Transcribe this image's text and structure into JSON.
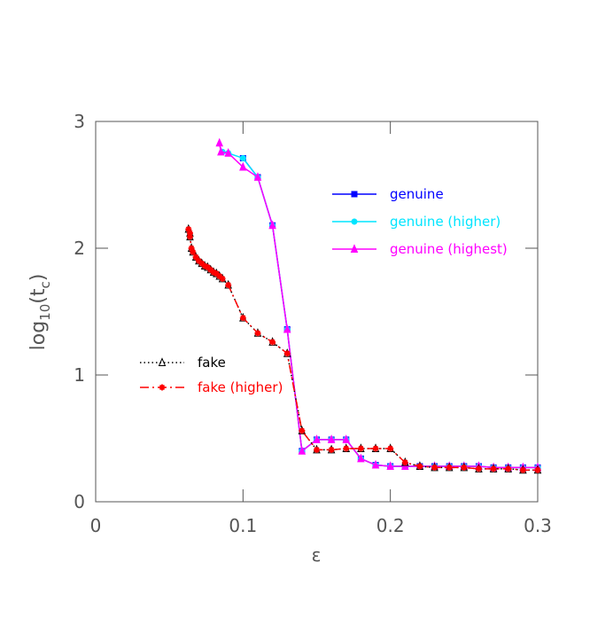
{
  "chart_data": {
    "type": "line",
    "x_label": "ε",
    "y_label_parts": [
      "log",
      "10",
      "(t",
      "c",
      ")"
    ],
    "xlim": [
      0,
      0.3
    ],
    "ylim": [
      0,
      3
    ],
    "xticks": [
      0,
      0.1,
      0.2,
      0.3
    ],
    "yticks": [
      0,
      1,
      2,
      3
    ],
    "series": [
      {
        "name": "genuine",
        "color": "#0000ff",
        "marker": "square",
        "dash": "solid",
        "x": [
          0.1,
          0.11,
          0.12,
          0.13,
          0.14,
          0.15,
          0.16,
          0.17,
          0.18,
          0.19,
          0.2,
          0.21,
          0.22,
          0.23,
          0.24,
          0.25,
          0.26,
          0.27,
          0.28,
          0.29,
          0.3
        ],
        "values": [
          2.71,
          2.56,
          2.18,
          1.36,
          0.4,
          0.49,
          0.49,
          0.49,
          0.34,
          0.29,
          0.28,
          0.28,
          0.28,
          0.28,
          0.28,
          0.28,
          0.28,
          0.27,
          0.27,
          0.27,
          0.27
        ]
      },
      {
        "name": "genuine (higher)",
        "color": "#00e5ff",
        "marker": "star",
        "dash": "solid",
        "x": [
          0.086,
          0.09,
          0.1,
          0.11,
          0.12,
          0.13,
          0.14,
          0.15,
          0.16,
          0.17,
          0.18,
          0.19,
          0.2,
          0.21,
          0.22,
          0.23,
          0.24,
          0.25,
          0.26,
          0.27,
          0.28,
          0.29,
          0.3
        ],
        "values": [
          2.76,
          2.75,
          2.71,
          2.56,
          2.18,
          1.36,
          0.4,
          0.49,
          0.49,
          0.49,
          0.34,
          0.29,
          0.28,
          0.28,
          0.28,
          0.28,
          0.28,
          0.28,
          0.28,
          0.27,
          0.27,
          0.27,
          0.27
        ]
      },
      {
        "name": "genuine (highest)",
        "color": "#ff00ff",
        "marker": "triangle",
        "dash": "solid",
        "x": [
          0.084,
          0.085,
          0.09,
          0.1,
          0.11,
          0.12,
          0.13,
          0.14,
          0.15,
          0.16,
          0.17,
          0.18,
          0.19,
          0.2,
          0.21,
          0.22,
          0.23,
          0.24,
          0.25,
          0.26,
          0.27,
          0.28,
          0.29,
          0.3
        ],
        "values": [
          2.83,
          2.76,
          2.75,
          2.64,
          2.56,
          2.18,
          1.36,
          0.4,
          0.49,
          0.49,
          0.49,
          0.34,
          0.29,
          0.28,
          0.28,
          0.28,
          0.28,
          0.28,
          0.28,
          0.28,
          0.27,
          0.27,
          0.27,
          0.27
        ]
      },
      {
        "name": "fake",
        "color": "#000000",
        "marker": "open-triangle",
        "dash": "dotted",
        "x": [
          0.063,
          0.064,
          0.064,
          0.065,
          0.066,
          0.068,
          0.07,
          0.072,
          0.074,
          0.076,
          0.078,
          0.08,
          0.082,
          0.084,
          0.086,
          0.09,
          0.1,
          0.11,
          0.12,
          0.13,
          0.14,
          0.15,
          0.16,
          0.17,
          0.18,
          0.19,
          0.2,
          0.21,
          0.22,
          0.23,
          0.24,
          0.25,
          0.26,
          0.27,
          0.28,
          0.29,
          0.3
        ],
        "values": [
          2.15,
          2.12,
          2.09,
          2.0,
          1.97,
          1.93,
          1.9,
          1.88,
          1.86,
          1.85,
          1.83,
          1.81,
          1.8,
          1.78,
          1.76,
          1.71,
          1.45,
          1.33,
          1.26,
          1.17,
          0.56,
          0.41,
          0.41,
          0.42,
          0.42,
          0.42,
          0.42,
          0.31,
          0.28,
          0.27,
          0.27,
          0.27,
          0.26,
          0.26,
          0.26,
          0.25,
          0.25
        ]
      },
      {
        "name": "fake (higher)",
        "color": "#ff0000",
        "marker": "asterisk",
        "dash": "dashed",
        "x": [
          0.063,
          0.064,
          0.064,
          0.065,
          0.066,
          0.068,
          0.07,
          0.072,
          0.074,
          0.076,
          0.078,
          0.08,
          0.082,
          0.084,
          0.086,
          0.09,
          0.1,
          0.11,
          0.12,
          0.13,
          0.14,
          0.15,
          0.16,
          0.17,
          0.18,
          0.19,
          0.2,
          0.21,
          0.22,
          0.23,
          0.24,
          0.25,
          0.26,
          0.27,
          0.28,
          0.29,
          0.3
        ],
        "values": [
          2.15,
          2.12,
          2.09,
          2.0,
          1.97,
          1.93,
          1.9,
          1.88,
          1.86,
          1.85,
          1.83,
          1.81,
          1.8,
          1.78,
          1.76,
          1.71,
          1.45,
          1.33,
          1.26,
          1.17,
          0.56,
          0.41,
          0.41,
          0.42,
          0.42,
          0.42,
          0.42,
          0.31,
          0.28,
          0.27,
          0.27,
          0.27,
          0.26,
          0.26,
          0.26,
          0.25,
          0.25
        ]
      }
    ]
  }
}
